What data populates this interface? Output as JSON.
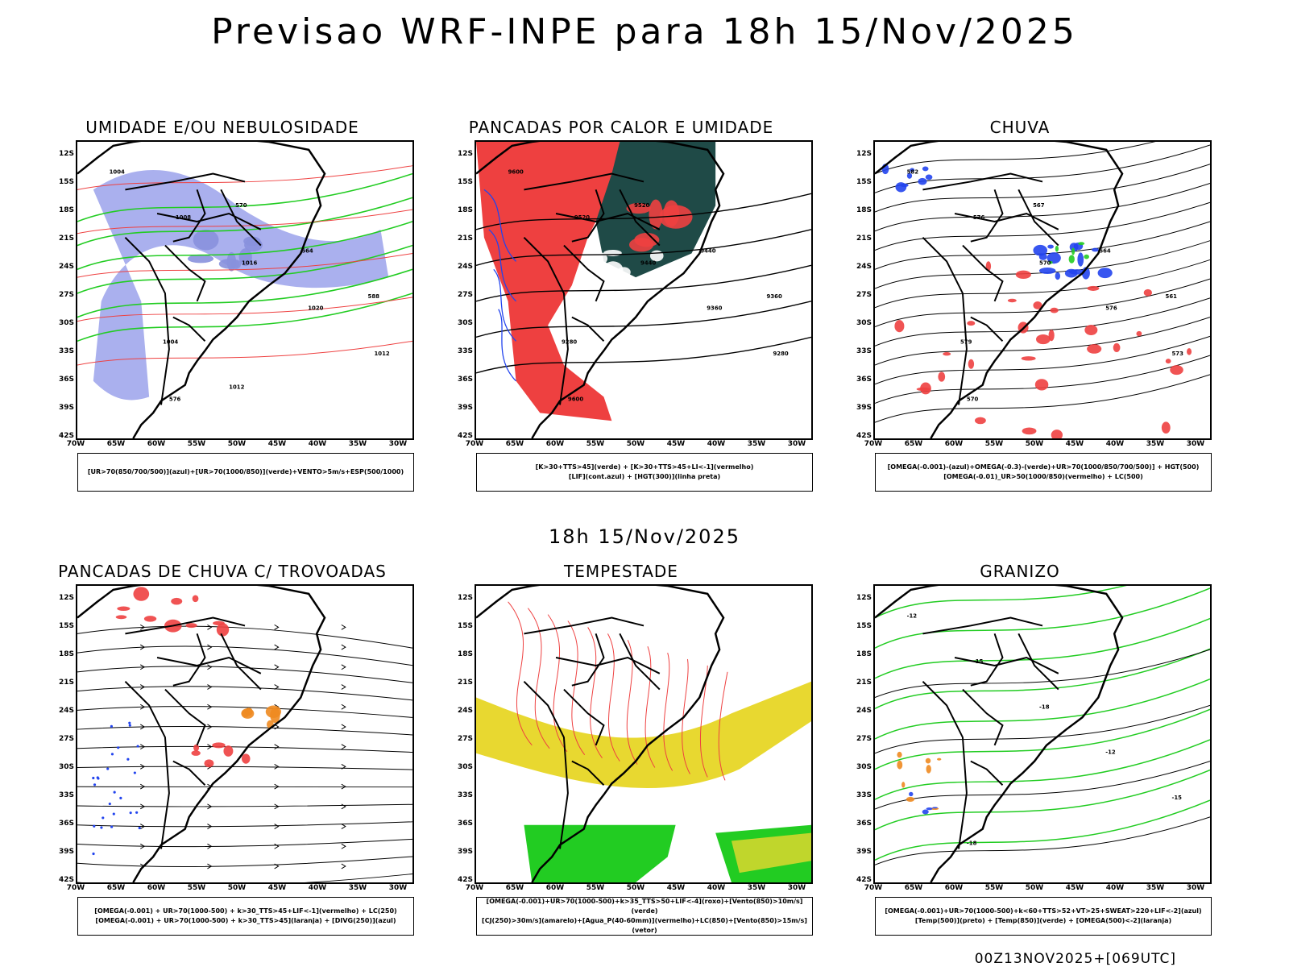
{
  "title": "Previsao WRF-INPE  para 18h 15/Nov/2025",
  "subtitle": "18h 15/Nov/2025",
  "footer": "00Z13NOV2025+[069UTC]",
  "lat_ticks": [
    "12S",
    "15S",
    "18S",
    "21S",
    "24S",
    "27S",
    "30S",
    "33S",
    "36S",
    "39S",
    "42S"
  ],
  "lon_ticks": [
    "70W",
    "65W",
    "60W",
    "55W",
    "50W",
    "45W",
    "40W",
    "35W",
    "30W"
  ],
  "colors": {
    "blue_fill": "#aab0ee",
    "green": "#22cc22",
    "red": "#ee4040",
    "dark": "#1f4a47",
    "yellow": "#e8d830",
    "orange": "#ee8a20",
    "blue": "#2244ee"
  },
  "panels": [
    {
      "title": "UMIDADE E/OU NEBULOSIDADE",
      "legend": [
        "[UR>70(850/700/500)](azul)+[UR>70(1000/850)](verde)+VENTO>5m/s+ESP(500/1000)"
      ],
      "labels": [
        "1004",
        "1008",
        "1016",
        "1020",
        "1012",
        "576",
        "570",
        "564",
        "588",
        "1004",
        "1012"
      ]
    },
    {
      "title": "PANCADAS POR CALOR E UMIDADE",
      "legend": [
        "[K>30+TTS>45](verde) + [K>30+TTS>45+LI<-1](vermelho)",
        "[LIF](cont.azul) + [HGT(300)](linha preta)"
      ],
      "labels": [
        "9600",
        "9520",
        "9440",
        "9360",
        "9280",
        "9600",
        "9520",
        "9440",
        "9360",
        "9280"
      ]
    },
    {
      "title": "CHUVA",
      "legend": [
        "[OMEGA(-0.001)-(azul)+OMEGA(-0.3)-(verde)+UR>70(1000/850/700/500)] + HGT(500)",
        "[OMEGA(-0.01)_UR>50(1000/850)(vermelho) + LC(500)"
      ],
      "labels": [
        "582",
        "576",
        "570",
        "576",
        "573",
        "570",
        "567",
        "564",
        "561",
        "579"
      ]
    },
    {
      "title": "PANCADAS DE CHUVA C/ TROVOADAS",
      "legend": [
        "[OMEGA(-0.001) + UR>70(1000-500) + k>30_TTS>45+LIF<-1](vermelho) + LC(250)",
        "[OMEGA(-0.001) + UR>70(1000-500) + k>30_TTS>45](laranja) + [DIVG(250)](azul)"
      ],
      "labels": []
    },
    {
      "title": "TEMPESTADE",
      "legend": [
        "[OMEGA(-0.001)+UR>70(1000-500)+k>35_TTS>50+LIF<-4](roxo)+[Vento(850)>10m/s](verde)",
        "[CJ(250)>30m/s](amarelo)+[Agua_P(40-60mm)](vermelho)+LC(850)+[Vento(850)>15m/s](vetor)"
      ],
      "labels": []
    },
    {
      "title": "GRANIZO",
      "legend": [
        "[OMEGA(-0.001)+UR>70(1000-500)+k<60+TTS>52+VT>25+SWEAT>220+LIF<-2](azul)",
        "[Temp(500)](preto) + [Temp(850)](verde) + [OMEGA(500)<-2](laranja)"
      ],
      "labels": [
        "-12",
        "-15",
        "-18",
        "-12",
        "-15",
        "-18"
      ]
    }
  ]
}
